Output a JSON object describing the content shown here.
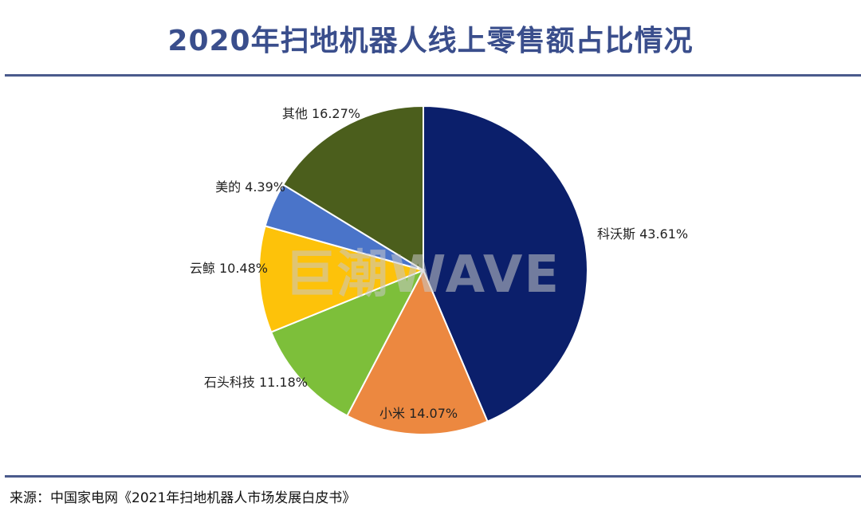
{
  "header": {
    "title": "2020年扫地机器人线上零售额占比情况"
  },
  "watermark": {
    "text": "巨潮WAVE",
    "color": "#c9c9c9"
  },
  "footer": {
    "source": "来源：中国家电网《2021年扫地机器人市场发展白皮书》"
  },
  "chart_data": {
    "type": "pie",
    "title": "2020年扫地机器人线上零售额占比情况",
    "unit": "%",
    "start_angle_deg": 0,
    "direction": "clockwise",
    "slices": [
      {
        "name": "科沃斯",
        "value": 43.61,
        "label": "科沃斯 43.61%",
        "color": "#0b1f6b"
      },
      {
        "name": "小米",
        "value": 14.07,
        "label": "小米 14.07%",
        "color": "#ec8840"
      },
      {
        "name": "石头科技",
        "value": 11.18,
        "label": "石头科技 11.18%",
        "color": "#7dbf3a"
      },
      {
        "name": "云鲸",
        "value": 10.48,
        "label": "云鲸 10.48%",
        "color": "#fdc20a"
      },
      {
        "name": "美的",
        "value": 4.39,
        "label": "美的 4.39%",
        "color": "#4a74c9"
      },
      {
        "name": "其他",
        "value": 16.27,
        "label": "其他 16.27%",
        "color": "#4b5e1c"
      }
    ]
  }
}
